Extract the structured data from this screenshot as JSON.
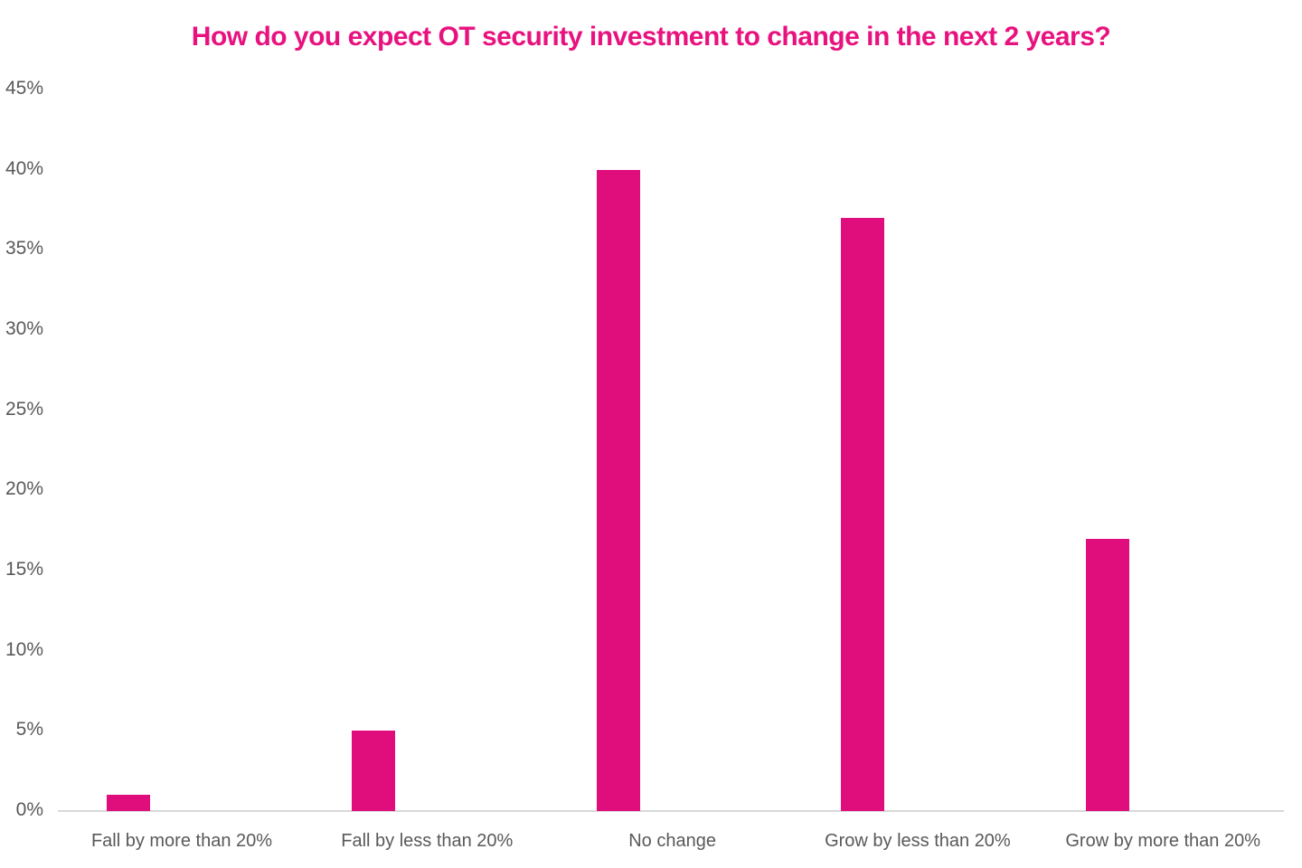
{
  "chart_data": {
    "type": "bar",
    "title": "How do you expect OT security investment to change in the next 2 years?",
    "categories": [
      "Fall by more than 20%",
      "Fall by less than 20%",
      "No change",
      "Grow by less than 20%",
      "Grow by more than 20%"
    ],
    "values": [
      1,
      5,
      40,
      37,
      17
    ],
    "xlabel": "",
    "ylabel": "",
    "ylim": [
      0,
      45
    ],
    "ytick_step": 5,
    "ytick_labels": [
      "0%",
      "5%",
      "10%",
      "15%",
      "20%",
      "25%",
      "30%",
      "35%",
      "40%",
      "45%"
    ],
    "grid": false,
    "legend": "none"
  },
  "colors": {
    "background": "#ffffff",
    "title": "#e8127f",
    "bar": "#e00d7d",
    "axis_labels": "#595959",
    "axis_line": "#d9d9d9"
  }
}
